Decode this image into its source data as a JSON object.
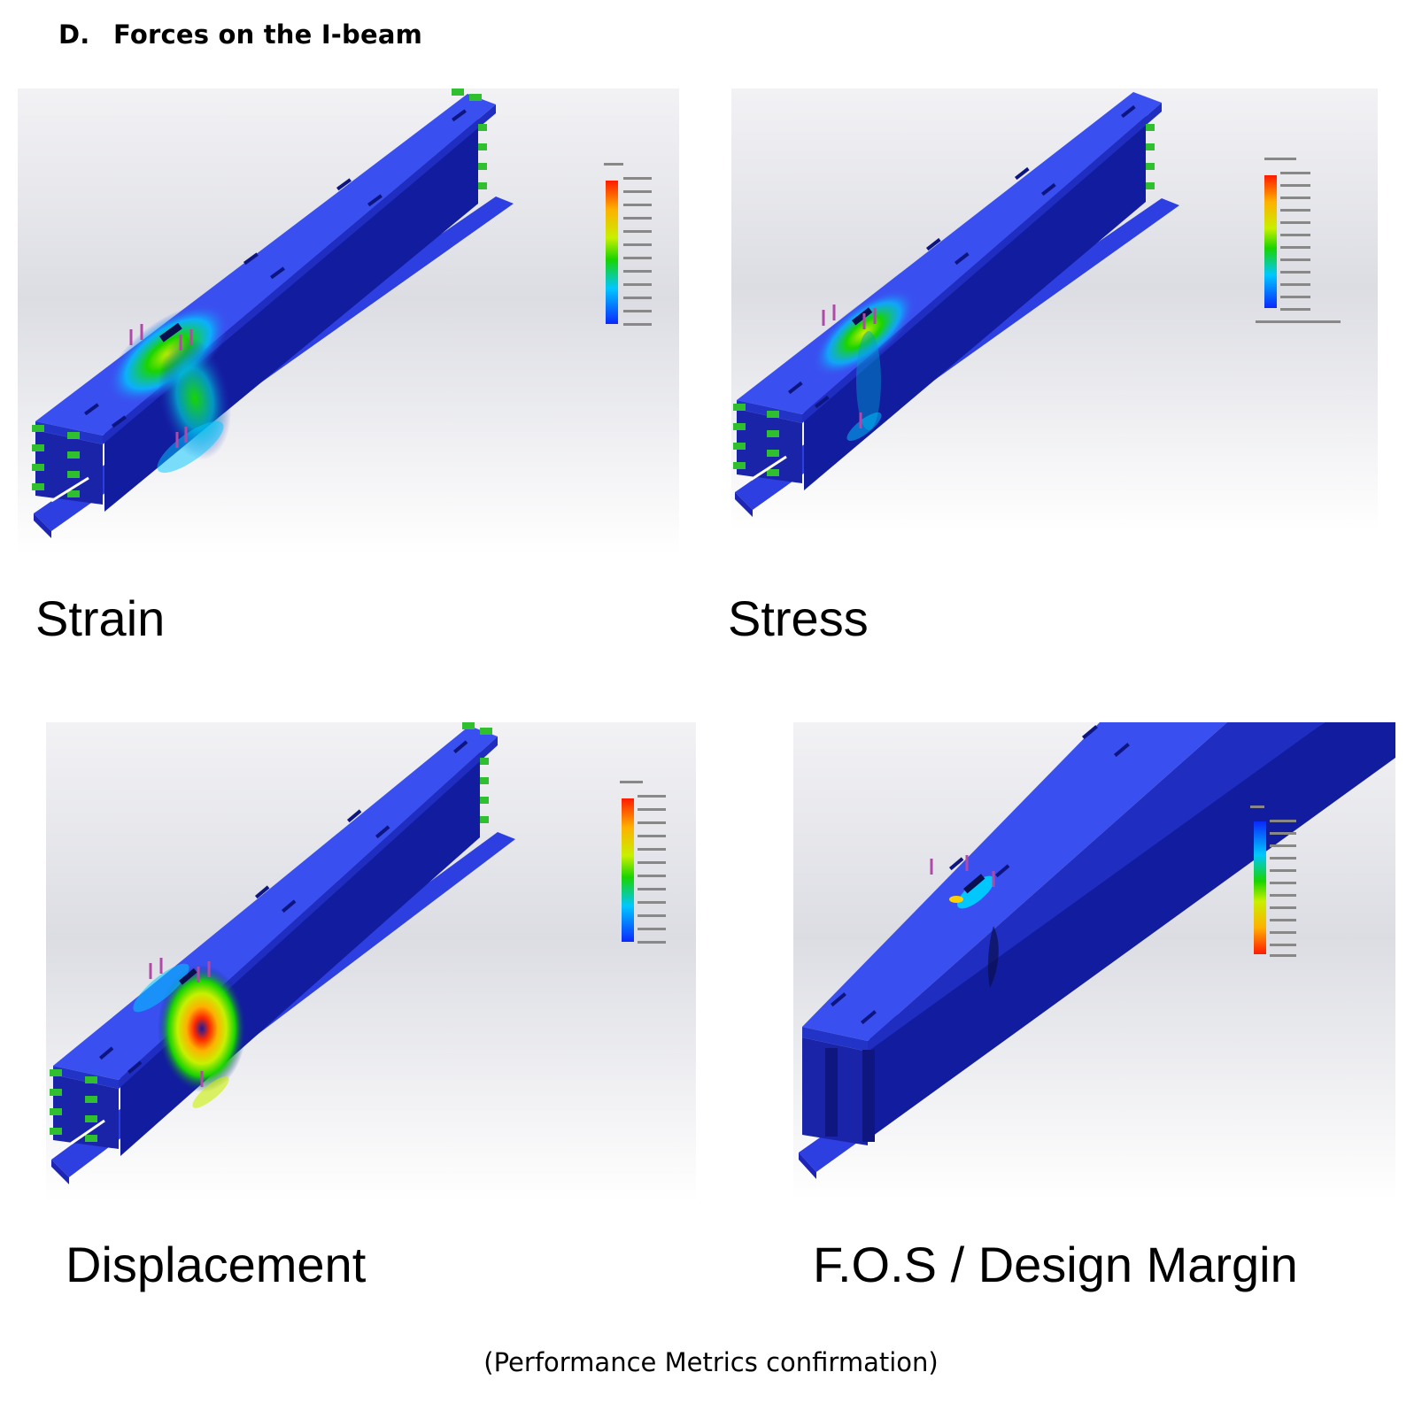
{
  "heading": {
    "number": "D.",
    "title": "Forces on the I-beam"
  },
  "panels": [
    {
      "id": "strain",
      "caption": "Strain",
      "colorbar": "rainbow",
      "highlight": "strain"
    },
    {
      "id": "stress",
      "caption": "Stress",
      "colorbar": "rainbow",
      "highlight": "stress"
    },
    {
      "id": "displacement",
      "caption": "Displacement",
      "colorbar": "rainbow",
      "highlight": "displacement"
    },
    {
      "id": "fos",
      "caption": "F.O.S / Design Margin",
      "colorbar": "reversed-rainbow",
      "highlight": "fos"
    }
  ],
  "footer": "(Performance Metrics confirmation)",
  "colors": {
    "beam_top": "#3a4ff0",
    "beam_side": "#1c25b8",
    "beam_web": "#10188c",
    "flange_edge": "#2d3fe0",
    "fixture": "#2fbf2f",
    "load_arrow": "#b04aa8",
    "background_top": "#f4f4f6",
    "background_bottom": "#ffffff"
  }
}
